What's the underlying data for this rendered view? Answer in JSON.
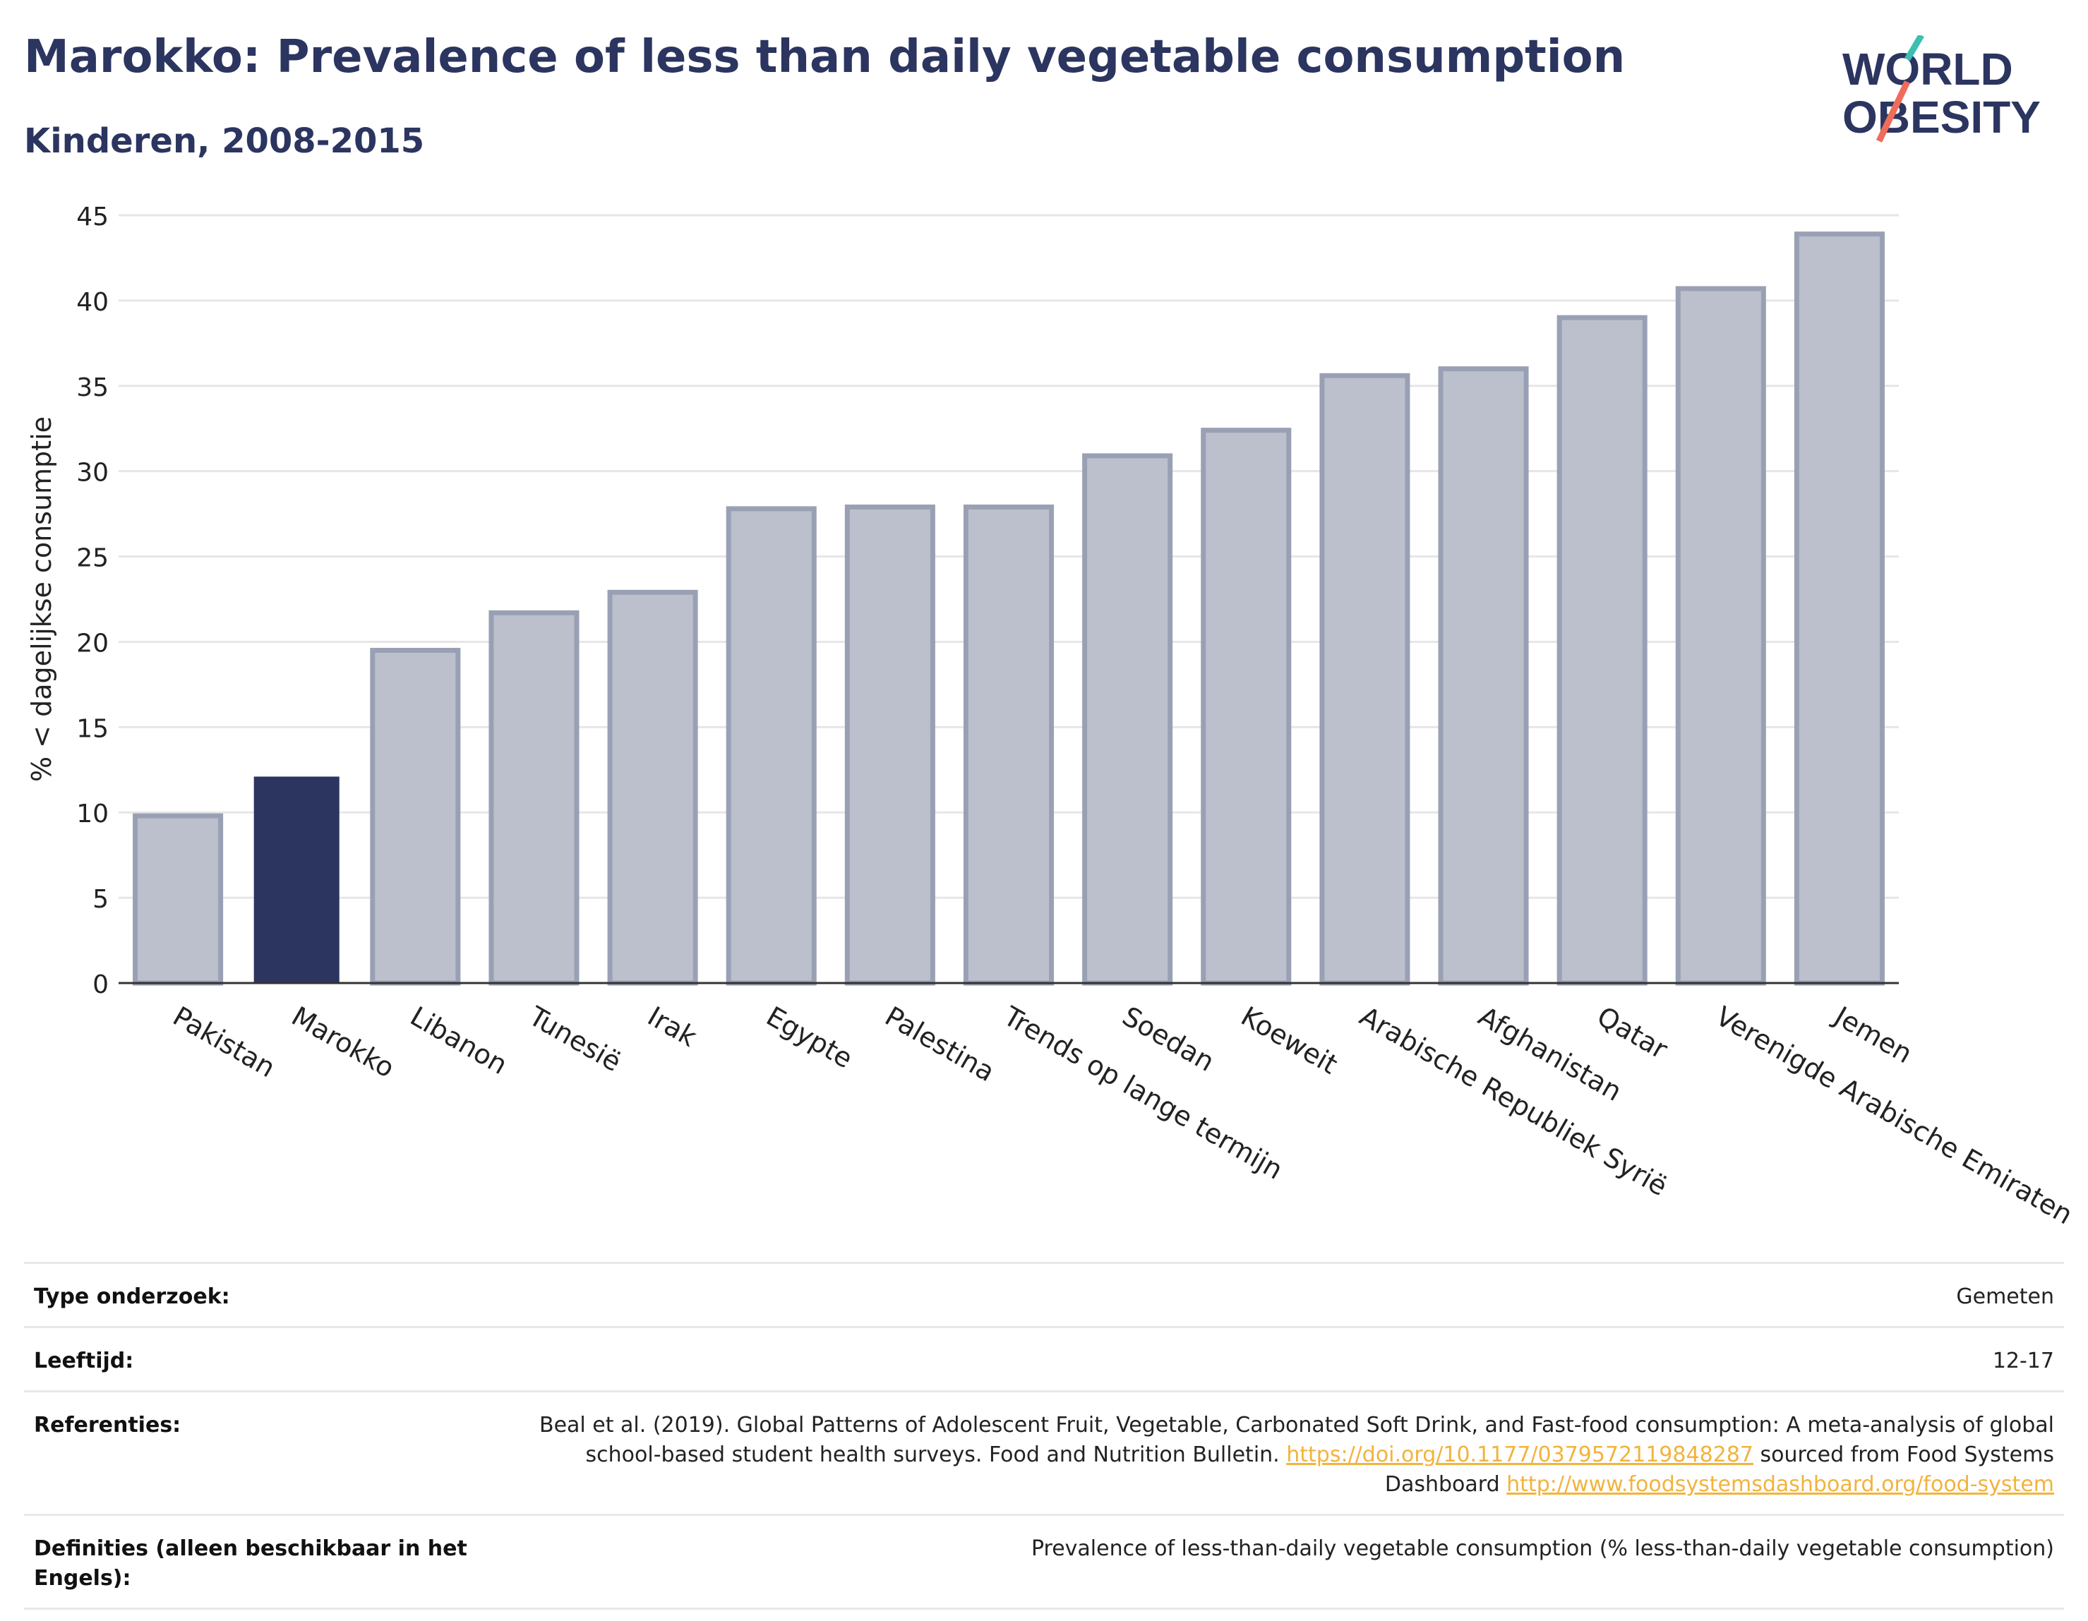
{
  "header": {
    "title": "Marokko: Prevalence of less than daily vegetable consumption",
    "subtitle": "Kinderen, 2008-2015"
  },
  "logo": {
    "line1": "WORLD",
    "line2": "OBESITY"
  },
  "colors": {
    "highlight_bar": "#2b3560",
    "other_bar": "#bcc0cd",
    "other_bar_border": "#9aa0b4",
    "text_dark": "#2b3560",
    "link": "#f2b33d",
    "logo_teal": "#3bbfb0",
    "logo_coral": "#ee6d5a"
  },
  "chart_data": {
    "type": "bar",
    "categories": [
      "Pakistan",
      "Marokko",
      "Libanon",
      "Tunesië",
      "Irak",
      "Egypte",
      "Palestina",
      "Trends op lange termijn",
      "Soedan",
      "Koeweit",
      "Arabische Republiek Syrië",
      "Afghanistan",
      "Qatar",
      "Verenigde Arabische Emiraten",
      "Jemen"
    ],
    "values": [
      9.8,
      12.1,
      19.5,
      21.7,
      22.9,
      27.8,
      27.9,
      27.9,
      30.9,
      32.4,
      35.6,
      36.0,
      39.0,
      40.7,
      43.9
    ],
    "highlight": "Marokko",
    "ylabel": "% < dagelijkse consumptie",
    "ylim": [
      0,
      45
    ],
    "yticks": [
      0,
      5,
      10,
      15,
      20,
      25,
      30,
      35,
      40,
      45
    ],
    "grid": true,
    "legend": "none"
  },
  "info": {
    "survey_type_label": "Type onderzoek:",
    "survey_type_value": "Gemeten",
    "age_label": "Leeftijd:",
    "age_value": "12-17",
    "references_label": "Referenties:",
    "references_text_1": "Beal et al. (2019). Global Patterns of Adolescent Fruit, Vegetable, Carbonated Soft Drink, and Fast-food consumption: A meta-analysis of global school-based student health surveys. Food and Nutrition Bulletin. ",
    "references_link_1": "https://doi.org/10.1177/0379572119848287",
    "references_text_2": " sourced from Food Systems Dashboard ",
    "references_link_2": "http://www.foodsystemsdashboard.org/food-system",
    "definitions_label": "Definities (alleen beschikbaar in het Engels):",
    "definitions_value": "Prevalence of less-than-daily vegetable consumption (% less-than-daily vegetable consumption)"
  }
}
